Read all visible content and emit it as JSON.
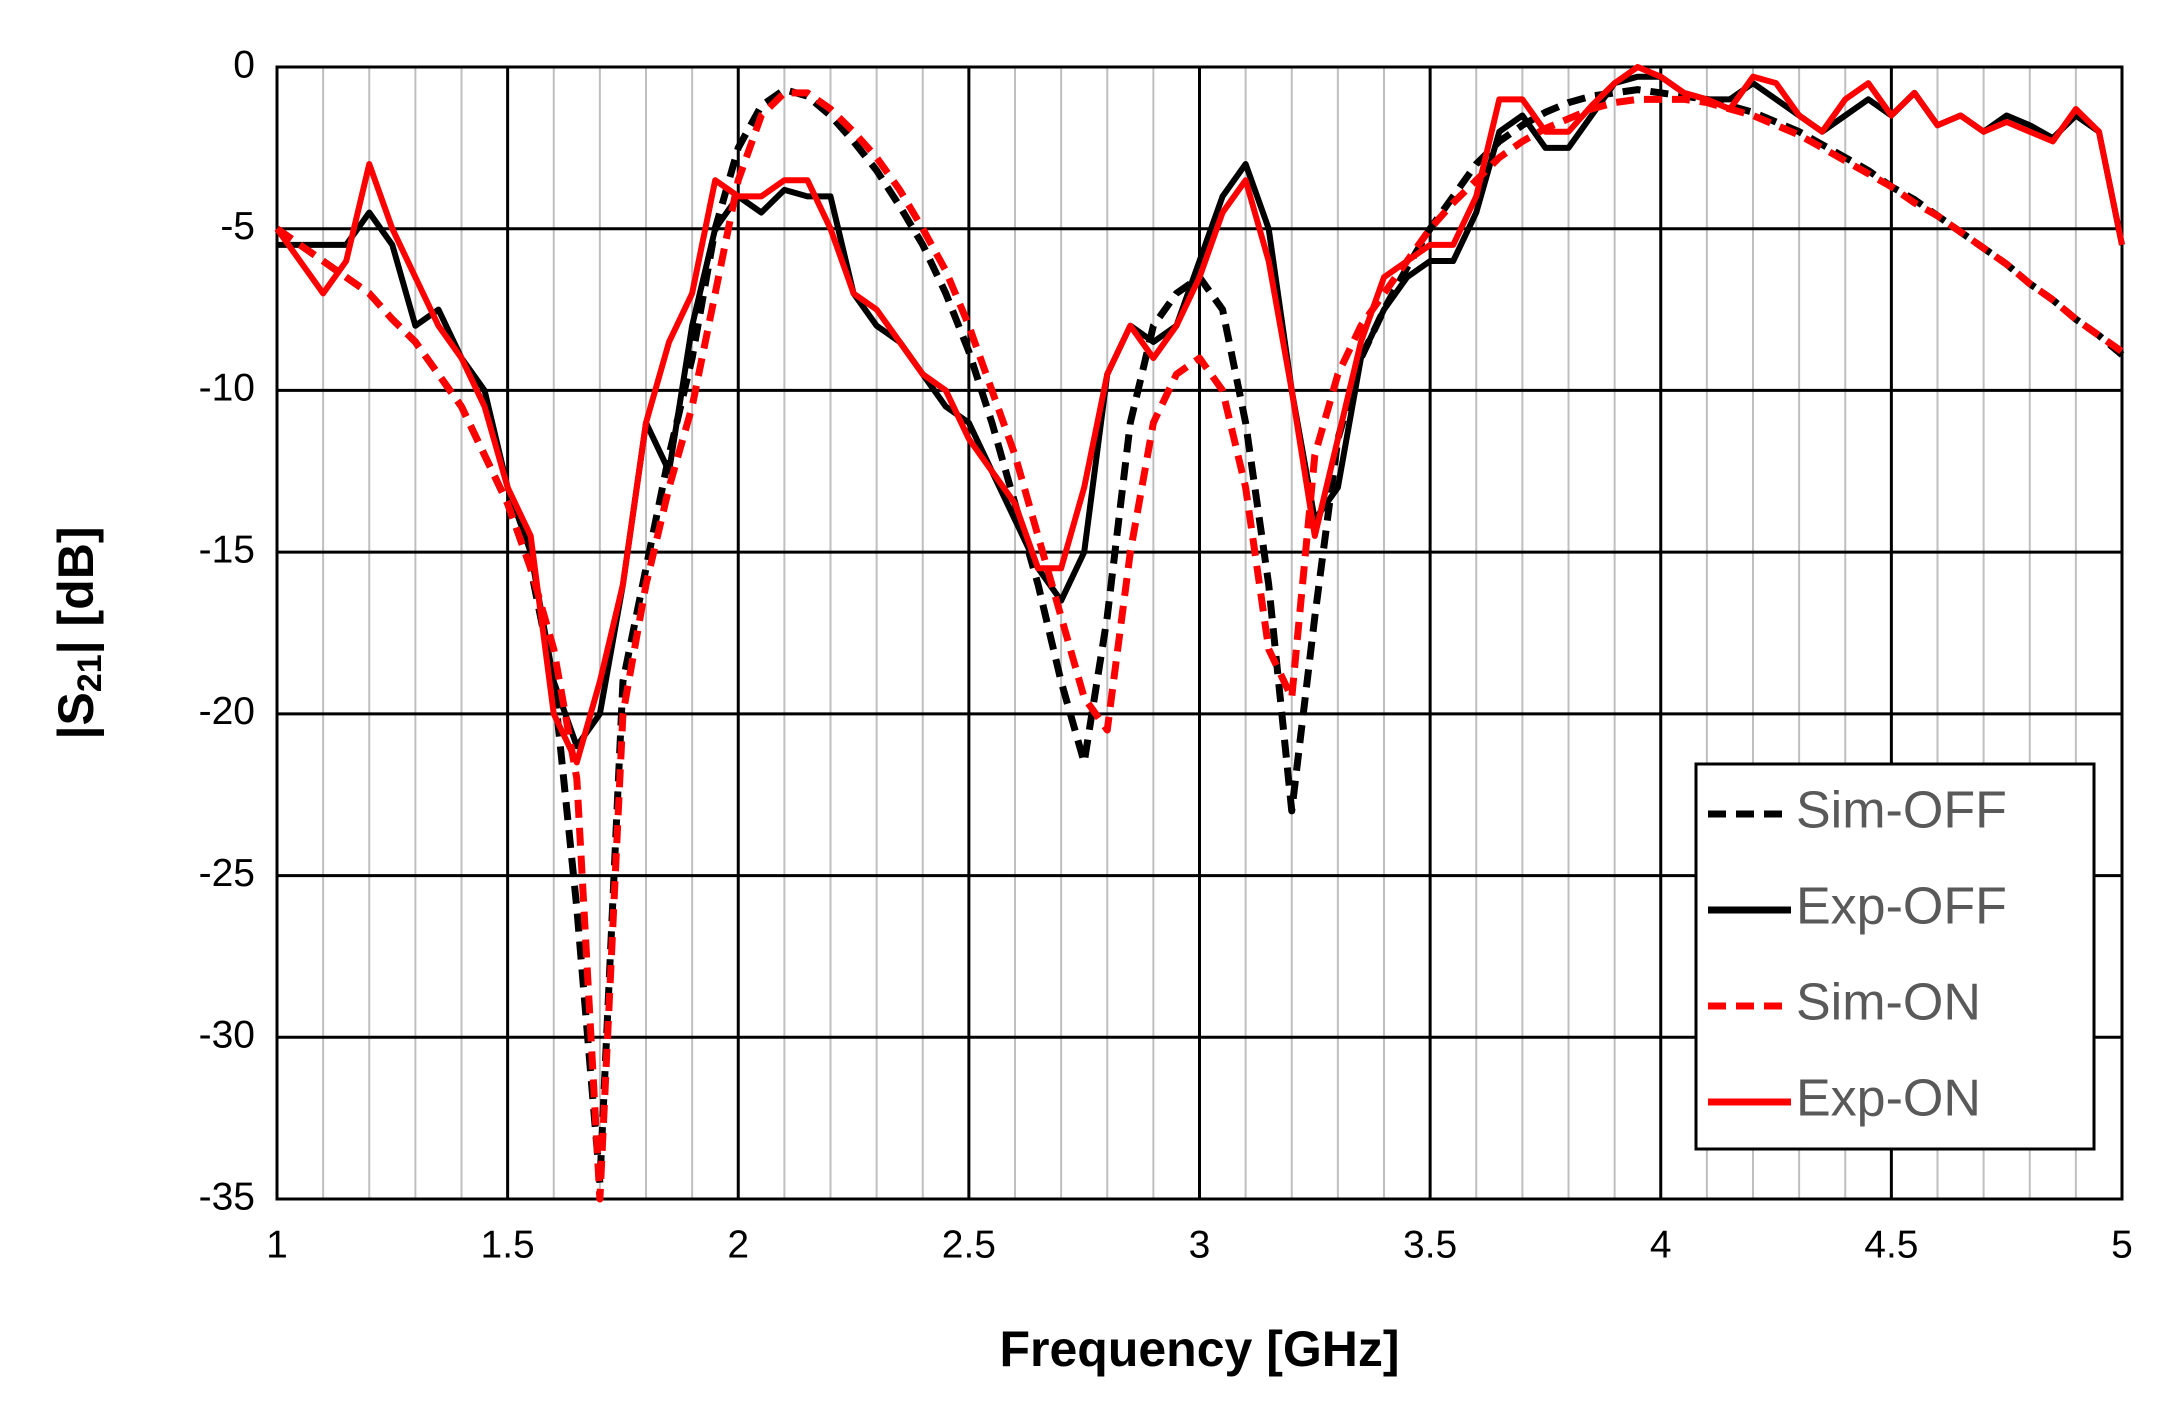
{
  "chart_data": {
    "type": "line",
    "x_label": "Frequency [GHz]",
    "y_label": {
      "main": "|S",
      "subscript": "21",
      "tail": "| [dB]"
    },
    "x": [
      1.0,
      1.05,
      1.1,
      1.15,
      1.2,
      1.25,
      1.3,
      1.35,
      1.4,
      1.45,
      1.5,
      1.55,
      1.6,
      1.65,
      1.7,
      1.75,
      1.8,
      1.85,
      1.9,
      1.95,
      2.0,
      2.05,
      2.1,
      2.15,
      2.2,
      2.25,
      2.3,
      2.35,
      2.4,
      2.45,
      2.5,
      2.55,
      2.6,
      2.65,
      2.7,
      2.75,
      2.8,
      2.85,
      2.9,
      2.95,
      3.0,
      3.05,
      3.1,
      3.15,
      3.2,
      3.25,
      3.3,
      3.35,
      3.4,
      3.45,
      3.5,
      3.55,
      3.6,
      3.65,
      3.7,
      3.75,
      3.8,
      3.85,
      3.9,
      3.95,
      4.0,
      4.05,
      4.1,
      4.15,
      4.2,
      4.25,
      4.3,
      4.35,
      4.4,
      4.45,
      4.5,
      4.55,
      4.6,
      4.65,
      4.7,
      4.75,
      4.8,
      4.85,
      4.9,
      4.95,
      5.0
    ],
    "series": [
      {
        "name": "Sim-OFF",
        "color": "#000000",
        "style": "dashed",
        "values": [
          -5,
          -5.5,
          -6,
          -6.5,
          -7,
          -7.8,
          -8.5,
          -9.5,
          -10.5,
          -12,
          -13.5,
          -15.5,
          -19,
          -26,
          -34.5,
          -19,
          -15.5,
          -12,
          -9,
          -5,
          -2.5,
          -1.2,
          -0.7,
          -0.9,
          -1.5,
          -2.3,
          -3.2,
          -4.3,
          -5.5,
          -7,
          -8.8,
          -11,
          -13.5,
          -16,
          -19,
          -21.5,
          -17,
          -11,
          -8,
          -7,
          -6.5,
          -7.5,
          -11,
          -16,
          -23,
          -17,
          -11.5,
          -9,
          -7.5,
          -6.2,
          -5,
          -4,
          -3,
          -2.3,
          -1.8,
          -1.4,
          -1.1,
          -0.9,
          -0.8,
          -0.7,
          -0.8,
          -0.9,
          -1,
          -1.2,
          -1.4,
          -1.7,
          -2,
          -2.4,
          -2.8,
          -3.2,
          -3.7,
          -4.1,
          -4.6,
          -5.1,
          -5.6,
          -6.1,
          -6.7,
          -7.2,
          -7.8,
          -8.3,
          -8.9
        ]
      },
      {
        "name": "Exp-OFF",
        "color": "#000000",
        "style": "solid",
        "values": [
          -5.5,
          -5.5,
          -5.5,
          -5.5,
          -4.5,
          -5.5,
          -8,
          -7.5,
          -9,
          -10,
          -13,
          -15,
          -19,
          -21,
          -20,
          -16,
          -11,
          -12.5,
          -8,
          -5,
          -4,
          -4.5,
          -3.8,
          -4,
          -4,
          -7,
          -8,
          -8.5,
          -9.5,
          -10.5,
          -11,
          -12.5,
          -14,
          -15.5,
          -16.5,
          -15,
          -9.5,
          -8,
          -8.5,
          -8,
          -6,
          -4,
          -3,
          -5,
          -10,
          -14,
          -13,
          -9,
          -7.5,
          -6.5,
          -6,
          -6,
          -4.5,
          -2,
          -1.5,
          -2.5,
          -2.5,
          -1.5,
          -0.5,
          -0.3,
          -0.3,
          -0.8,
          -1,
          -1,
          -0.5,
          -1,
          -1.5,
          -2,
          -1.5,
          -1,
          -1.5,
          -0.8,
          -1.8,
          -1.5,
          -2,
          -1.5,
          -1.8,
          -2.2,
          -1.5,
          -2,
          -5.5
        ]
      },
      {
        "name": "Sim-ON",
        "color": "#ff0000",
        "style": "dashed",
        "values": [
          -5,
          -5.5,
          -6,
          -6.5,
          -7,
          -7.8,
          -8.5,
          -9.5,
          -10.5,
          -12,
          -13.5,
          -15.5,
          -18,
          -22,
          -35,
          -20,
          -16,
          -13,
          -10.5,
          -7,
          -3.5,
          -1.5,
          -0.8,
          -0.8,
          -1.3,
          -2,
          -2.8,
          -3.8,
          -5,
          -6.3,
          -8,
          -10,
          -12,
          -14.5,
          -17,
          -19.5,
          -20.5,
          -15,
          -11,
          -9.5,
          -9,
          -10,
          -13,
          -18,
          -19.5,
          -12,
          -9.5,
          -8,
          -7,
          -6,
          -5,
          -4.2,
          -3.5,
          -2.8,
          -2.3,
          -1.9,
          -1.6,
          -1.3,
          -1.1,
          -1,
          -1,
          -1,
          -1.1,
          -1.3,
          -1.5,
          -1.8,
          -2.1,
          -2.5,
          -2.9,
          -3.3,
          -3.7,
          -4.2,
          -4.6,
          -5.1,
          -5.6,
          -6.1,
          -6.7,
          -7.2,
          -7.8,
          -8.3,
          -8.8
        ]
      },
      {
        "name": "Exp-ON",
        "color": "#ff0000",
        "style": "solid",
        "values": [
          -5,
          -6,
          -7,
          -6,
          -3,
          -5,
          -6.5,
          -8,
          -9,
          -10.5,
          -13,
          -14.5,
          -20,
          -21.5,
          -19,
          -16,
          -11,
          -8.5,
          -7,
          -3.5,
          -4,
          -4,
          -3.5,
          -3.5,
          -5,
          -7,
          -7.5,
          -8.5,
          -9.5,
          -10,
          -11.5,
          -12.5,
          -13.5,
          -15.5,
          -15.5,
          -13,
          -9.5,
          -8,
          -9,
          -8,
          -6.5,
          -4.5,
          -3.5,
          -6,
          -10,
          -14.5,
          -11.5,
          -8.5,
          -6.5,
          -6,
          -5.5,
          -5.5,
          -4,
          -1,
          -1,
          -2,
          -2,
          -1.2,
          -0.5,
          0,
          -0.3,
          -0.8,
          -1,
          -1.3,
          -0.3,
          -0.5,
          -1.5,
          -2,
          -1,
          -0.5,
          -1.5,
          -0.8,
          -1.8,
          -1.5,
          -2,
          -1.7,
          -2,
          -2.3,
          -1.3,
          -2,
          -5.5
        ]
      }
    ],
    "xlim": [
      1,
      5
    ],
    "ylim": [
      -35,
      0
    ],
    "xticks": [
      1,
      1.5,
      2,
      2.5,
      3,
      3.5,
      4,
      4.5,
      5
    ],
    "xminorticks": [
      1.1,
      1.2,
      1.3,
      1.4,
      1.6,
      1.7,
      1.8,
      1.9,
      2.1,
      2.2,
      2.3,
      2.4,
      2.6,
      2.7,
      2.8,
      2.9,
      3.1,
      3.2,
      3.3,
      3.4,
      3.6,
      3.7,
      3.8,
      3.9,
      4.1,
      4.2,
      4.3,
      4.4,
      4.6,
      4.7,
      4.8,
      4.9
    ],
    "yticks": [
      0,
      -5,
      -10,
      -15,
      -20,
      -25,
      -30,
      -35
    ],
    "grid": true,
    "legend": "lower right"
  }
}
